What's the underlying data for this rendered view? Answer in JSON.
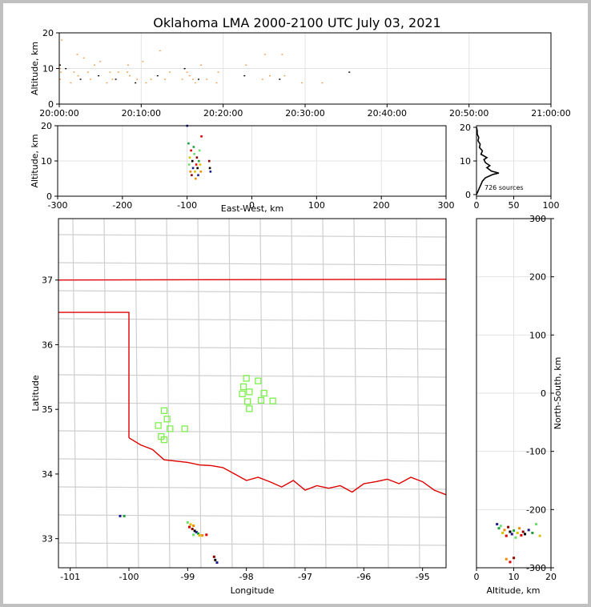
{
  "title": "Oklahoma LMA 2000-2100 UTC July 03, 2021",
  "chart_data": [
    {
      "panel": "time-height",
      "type": "scatter",
      "ylabel": "Altitude, km",
      "ylim": [
        0,
        20
      ],
      "yticks": [
        "0",
        "10",
        "20"
      ],
      "xlim_minutes": [
        0,
        60
      ],
      "xtick_minutes": [
        0,
        10,
        20,
        30,
        40,
        50,
        60
      ],
      "xtick_labels": [
        "20:00:00",
        "20:10:00",
        "20:20:00",
        "20:30:00",
        "20:40:00",
        "20:50:00",
        "21:00:00"
      ],
      "points": [
        [
          0.1,
          11
        ],
        [
          0.1,
          10
        ],
        [
          0.2,
          9
        ],
        [
          0.1,
          7
        ],
        [
          0.3,
          18
        ],
        [
          0.8,
          10
        ],
        [
          1.4,
          6
        ],
        [
          1.8,
          9
        ],
        [
          2.2,
          14
        ],
        [
          2.3,
          8
        ],
        [
          2.6,
          7
        ],
        [
          3.0,
          13
        ],
        [
          3.5,
          9
        ],
        [
          3.8,
          7
        ],
        [
          4.3,
          11
        ],
        [
          4.8,
          8
        ],
        [
          5.0,
          12
        ],
        [
          5.8,
          6
        ],
        [
          6.2,
          9
        ],
        [
          6.5,
          7
        ],
        [
          6.9,
          7
        ],
        [
          7.2,
          9
        ],
        [
          8.3,
          9
        ],
        [
          8.4,
          11
        ],
        [
          8.6,
          8
        ],
        [
          9.3,
          6
        ],
        [
          9.5,
          7
        ],
        [
          10.2,
          12
        ],
        [
          10.6,
          6
        ],
        [
          11.2,
          7
        ],
        [
          12.0,
          8
        ],
        [
          12.3,
          15
        ],
        [
          12.9,
          7
        ],
        [
          13.5,
          9
        ],
        [
          15.0,
          7
        ],
        [
          15.3,
          10
        ],
        [
          15.6,
          9
        ],
        [
          15.9,
          8
        ],
        [
          16.3,
          7
        ],
        [
          16.6,
          6
        ],
        [
          17.0,
          7
        ],
        [
          17.3,
          11
        ],
        [
          18.0,
          7
        ],
        [
          19.2,
          6
        ],
        [
          19.4,
          9
        ],
        [
          22.6,
          8
        ],
        [
          22.8,
          11
        ],
        [
          24.8,
          7
        ],
        [
          25.1,
          14
        ],
        [
          25.7,
          8
        ],
        [
          26.9,
          7
        ],
        [
          27.2,
          14
        ],
        [
          27.5,
          8
        ],
        [
          29.6,
          6
        ],
        [
          32.1,
          6
        ],
        [
          35.4,
          9
        ]
      ]
    },
    {
      "panel": "east-west-altitude",
      "type": "scatter",
      "xlabel": "East-West, km",
      "ylabel": "Altitude, km",
      "xlim": [
        -300,
        300
      ],
      "ylim": [
        0,
        20
      ],
      "xticks": [
        "-300",
        "-200",
        "-100",
        "0",
        "100",
        "200",
        "300"
      ],
      "yticks": [
        "0",
        "10",
        "20"
      ],
      "points": [
        [
          -100,
          20
        ],
        [
          -98,
          15
        ],
        [
          -97,
          9
        ],
        [
          -96,
          11
        ],
        [
          -95,
          7
        ],
        [
          -94,
          13
        ],
        [
          -93,
          6
        ],
        [
          -92,
          10
        ],
        [
          -91,
          8
        ],
        [
          -90,
          14
        ],
        [
          -89,
          12
        ],
        [
          -88,
          7
        ],
        [
          -87,
          5
        ],
        [
          -86,
          9
        ],
        [
          -85,
          11
        ],
        [
          -84,
          8
        ],
        [
          -83,
          6
        ],
        [
          -82,
          10
        ],
        [
          -81,
          13
        ],
        [
          -80,
          9
        ],
        [
          -79,
          7
        ],
        [
          -78,
          17
        ],
        [
          -66,
          10
        ],
        [
          -65,
          8
        ],
        [
          -64,
          7
        ]
      ]
    },
    {
      "panel": "altitude-histogram",
      "type": "line",
      "xlim": [
        0,
        100
      ],
      "ylim": [
        0,
        20
      ],
      "xticks": [
        "0",
        "50",
        "100"
      ],
      "yticks": [
        "0",
        "10",
        "20"
      ],
      "annotation": "726 sources",
      "counts": [
        [
          0,
          0
        ],
        [
          2,
          1
        ],
        [
          4,
          2
        ],
        [
          6,
          3
        ],
        [
          8,
          4
        ],
        [
          12,
          5
        ],
        [
          22,
          6
        ],
        [
          30,
          6.4
        ],
        [
          20,
          7
        ],
        [
          14,
          8
        ],
        [
          18,
          8.6
        ],
        [
          12,
          9.5
        ],
        [
          10,
          10.4
        ],
        [
          14,
          11
        ],
        [
          6,
          12
        ],
        [
          8,
          13
        ],
        [
          4,
          14
        ],
        [
          5,
          15
        ],
        [
          2,
          16
        ],
        [
          3,
          17
        ],
        [
          1,
          18
        ],
        [
          1,
          19
        ],
        [
          0,
          20
        ]
      ]
    },
    {
      "panel": "plan-view",
      "type": "scatter",
      "xlabel": "Longitude",
      "ylabel": "Latitude",
      "xlim": [
        -101.2,
        -94.6
      ],
      "ylim": [
        32.55,
        37.95
      ],
      "xticks": [
        "-101",
        "-100",
        "-99",
        "-98",
        "-97",
        "-96",
        "-95"
      ],
      "yticks": [
        "33",
        "34",
        "35",
        "36",
        "37"
      ],
      "stations": [
        [
          -99.4,
          34.98
        ],
        [
          -99.35,
          34.85
        ],
        [
          -99.5,
          34.75
        ],
        [
          -99.3,
          34.7
        ],
        [
          -99.05,
          34.7
        ],
        [
          -99.45,
          34.58
        ],
        [
          -99.4,
          34.53
        ],
        [
          -98.0,
          35.48
        ],
        [
          -97.8,
          35.44
        ],
        [
          -98.05,
          35.35
        ],
        [
          -97.95,
          35.27
        ],
        [
          -98.07,
          35.24
        ],
        [
          -97.7,
          35.25
        ],
        [
          -97.75,
          35.14
        ],
        [
          -97.55,
          35.13
        ],
        [
          -97.98,
          35.12
        ],
        [
          -97.95,
          35.01
        ]
      ],
      "sources": [
        [
          -100.15,
          33.35
        ],
        [
          -100.08,
          33.35
        ],
        [
          -99.0,
          33.25
        ],
        [
          -98.95,
          33.22
        ],
        [
          -98.9,
          33.2
        ],
        [
          -98.97,
          33.18
        ],
        [
          -98.92,
          33.15
        ],
        [
          -98.88,
          33.12
        ],
        [
          -98.85,
          33.1
        ],
        [
          -98.82,
          33.08
        ],
        [
          -98.9,
          33.06
        ],
        [
          -98.8,
          33.05
        ],
        [
          -98.75,
          33.05
        ],
        [
          -98.68,
          33.06
        ],
        [
          -98.55,
          32.72
        ],
        [
          -98.53,
          32.67
        ],
        [
          -98.5,
          32.63
        ]
      ]
    },
    {
      "panel": "altitude-north-south",
      "type": "scatter",
      "xlabel": "Altitude, km",
      "ylabel": "North-South, km",
      "xlim": [
        0,
        20
      ],
      "ylim": [
        -300,
        300
      ],
      "xticks": [
        "0",
        "10",
        "20"
      ],
      "yticks": [
        "-300",
        "-200",
        "-100",
        "0",
        "100",
        "200",
        "300"
      ],
      "points": [
        [
          5.5,
          -225
        ],
        [
          6,
          -232
        ],
        [
          6.5,
          -228
        ],
        [
          7,
          -240
        ],
        [
          7.5,
          -235
        ],
        [
          8,
          -245
        ],
        [
          8.5,
          -230
        ],
        [
          9,
          -238
        ],
        [
          9.5,
          -242
        ],
        [
          10,
          -236
        ],
        [
          10.5,
          -248
        ],
        [
          11,
          -240
        ],
        [
          11.5,
          -232
        ],
        [
          12,
          -244
        ],
        [
          12.5,
          -238
        ],
        [
          13,
          -242
        ],
        [
          14,
          -235
        ],
        [
          15,
          -240
        ],
        [
          16,
          -225
        ],
        [
          17,
          -245
        ],
        [
          8,
          -285
        ],
        [
          9,
          -290
        ],
        [
          10,
          -283
        ]
      ]
    }
  ]
}
